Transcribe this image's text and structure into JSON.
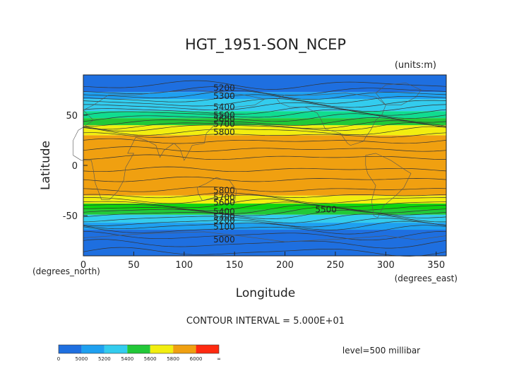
{
  "chart_data": {
    "type": "heatmap",
    "title": "HGT_1951-SON_NCEP",
    "units": "(units:m)",
    "xlabel": "Longitude",
    "ylabel": "Latitude",
    "x_unit_note": "(degrees_east)",
    "y_unit_note": "(degrees_north)",
    "xlim": [
      0,
      360
    ],
    "ylim": [
      -90,
      90
    ],
    "xticks": [
      0,
      50,
      100,
      150,
      200,
      250,
      300,
      350
    ],
    "yticks": [
      -50,
      0,
      50
    ],
    "contour_interval_text": "CONTOUR INTERVAL = 5.000E+01",
    "level_text": "level=500 millibar",
    "bands": [
      {
        "lat_min": -90,
        "lat_max": -64,
        "color": "#1e6fe0"
      },
      {
        "lat_min": -64,
        "lat_max": -57,
        "color": "#1ea0f0"
      },
      {
        "lat_min": -57,
        "lat_max": -49,
        "color": "#33ccee"
      },
      {
        "lat_min": -49,
        "lat_max": -44,
        "color": "#22c838"
      },
      {
        "lat_min": -44,
        "lat_max": -38,
        "color": "#0fd40f"
      },
      {
        "lat_min": -38,
        "lat_max": -30,
        "color": "#f2ee10"
      },
      {
        "lat_min": -30,
        "lat_max": 30,
        "color": "#f0a010"
      },
      {
        "lat_min": 30,
        "lat_max": 40,
        "color": "#f2ee10"
      },
      {
        "lat_min": 40,
        "lat_max": 47,
        "color": "#22c838"
      },
      {
        "lat_min": 47,
        "lat_max": 54,
        "color": "#10dc90"
      },
      {
        "lat_min": 54,
        "lat_max": 66,
        "color": "#33ccee"
      },
      {
        "lat_min": 66,
        "lat_max": 73,
        "color": "#1ea0f0"
      },
      {
        "lat_min": 73,
        "lat_max": 90,
        "color": "#1e6fe0"
      }
    ],
    "contour_labels": [
      {
        "text": "5200",
        "lon": 129,
        "lat": 77
      },
      {
        "text": "5300",
        "lon": 129,
        "lat": 69
      },
      {
        "text": "5400",
        "lon": 129,
        "lat": 58
      },
      {
        "text": "5500",
        "lon": 129,
        "lat": 50
      },
      {
        "text": "5600",
        "lon": 129,
        "lat": 46
      },
      {
        "text": "5700",
        "lon": 129,
        "lat": 41
      },
      {
        "text": "5800",
        "lon": 129,
        "lat": 33
      },
      {
        "text": "5800",
        "lon": 129,
        "lat": -25
      },
      {
        "text": "5700",
        "lon": 129,
        "lat": -32
      },
      {
        "text": "5600",
        "lon": 129,
        "lat": -37
      },
      {
        "text": "5500",
        "lon": 230,
        "lat": -44
      },
      {
        "text": "5400",
        "lon": 129,
        "lat": -46
      },
      {
        "text": "5300",
        "lon": 129,
        "lat": -51
      },
      {
        "text": "5200",
        "lon": 129,
        "lat": -55
      },
      {
        "text": "5100",
        "lon": 129,
        "lat": -61
      },
      {
        "text": "5000",
        "lon": 129,
        "lat": -74
      }
    ],
    "colorbar": {
      "colors": [
        "#1e6fe0",
        "#1ea0f0",
        "#33ccee",
        "#22c838",
        "#f2ee10",
        "#f0a010",
        "#ff2a10"
      ],
      "labels": [
        "0",
        "5000",
        "5200",
        "5400",
        "5600",
        "5800",
        "6000",
        "∞"
      ]
    }
  }
}
